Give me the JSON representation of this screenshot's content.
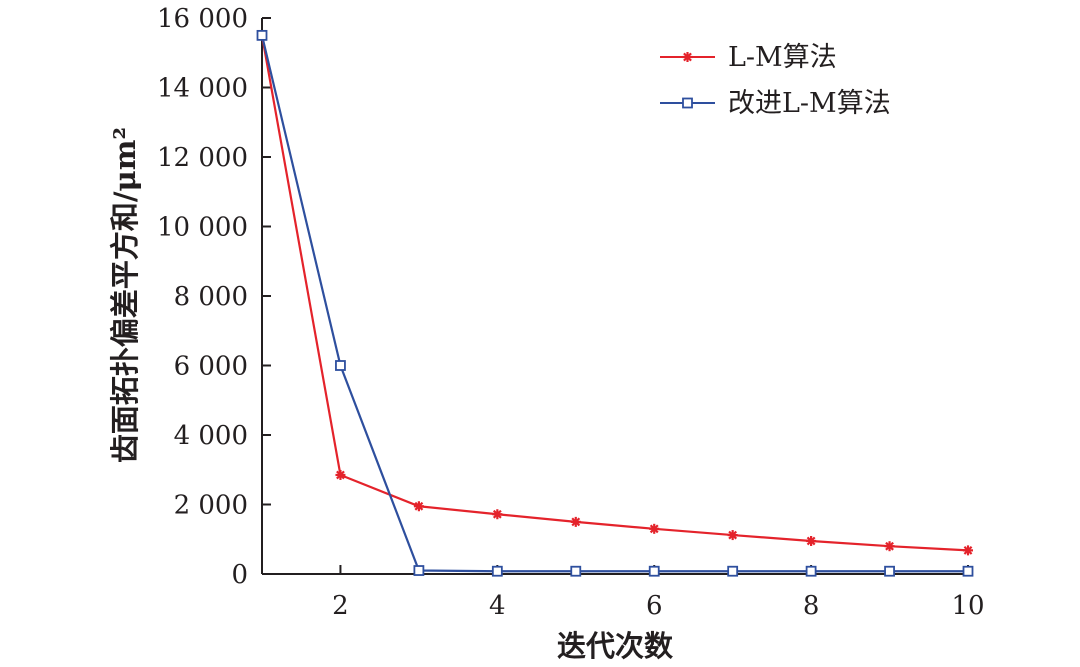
{
  "chart_data": {
    "type": "line",
    "xlabel": "迭代次数",
    "ylabel": "齿面拓扑偏差平方和/μm²",
    "xlim": [
      1,
      10
    ],
    "ylim": [
      0,
      16000
    ],
    "x_ticks": [
      2,
      4,
      6,
      8,
      10
    ],
    "y_ticks": [
      0,
      2000,
      4000,
      6000,
      8000,
      10000,
      12000,
      14000,
      16000
    ],
    "y_tick_labels": [
      "0",
      "2 000",
      "4 000",
      "6 000",
      "8 000",
      "10 000",
      "12 000",
      "14 000",
      "16 000"
    ],
    "grid": false,
    "legend_position": "top-right",
    "x": [
      1,
      2,
      3,
      4,
      5,
      6,
      7,
      8,
      9,
      10
    ],
    "series": [
      {
        "name": "L-M算法",
        "color": "#e4232b",
        "marker": "asterisk",
        "values": [
          15500,
          2850,
          1950,
          1720,
          1500,
          1300,
          1120,
          950,
          800,
          680
        ]
      },
      {
        "name": "改进L-M算法",
        "color": "#2e4f9e",
        "marker": "square",
        "values": [
          15500,
          6000,
          100,
          80,
          80,
          80,
          80,
          80,
          80,
          80
        ]
      }
    ]
  }
}
